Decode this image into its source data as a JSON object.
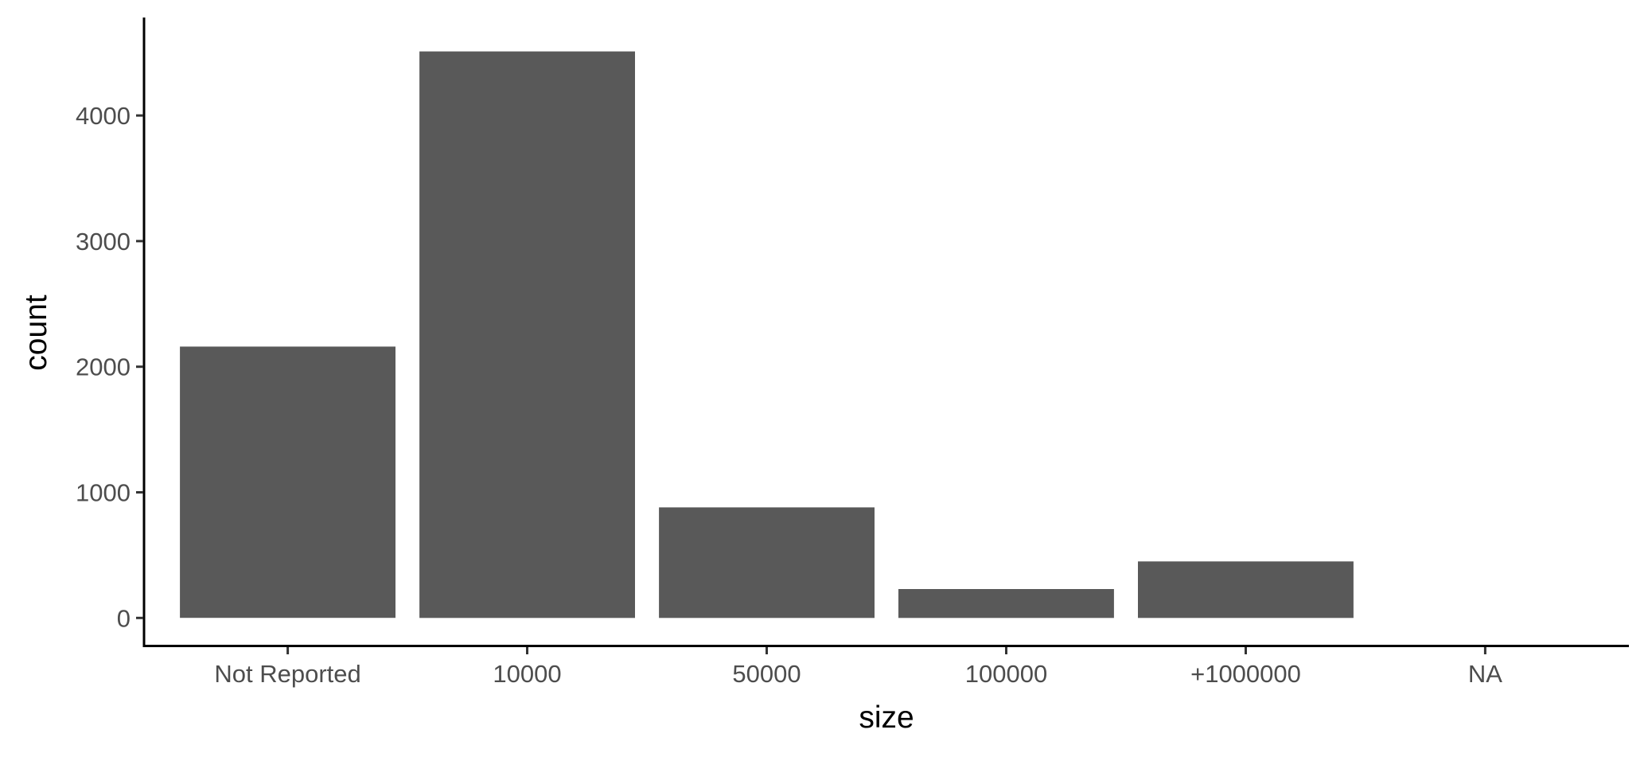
{
  "chart_data": {
    "type": "bar",
    "title": "",
    "xlabel": "size",
    "ylabel": "count",
    "categories": [
      "Not Reported",
      "10000",
      "50000",
      "100000",
      "+1000000",
      "NA"
    ],
    "values": [
      2160,
      4510,
      880,
      230,
      450,
      0
    ],
    "ylim": [
      -220,
      4780
    ],
    "yticks": [
      0,
      1000,
      2000,
      3000,
      4000
    ],
    "yticklabels": [
      "0",
      "1000",
      "2000",
      "3000",
      "4000"
    ],
    "grid": false,
    "legend": "none",
    "bar_color": "#595959"
  }
}
